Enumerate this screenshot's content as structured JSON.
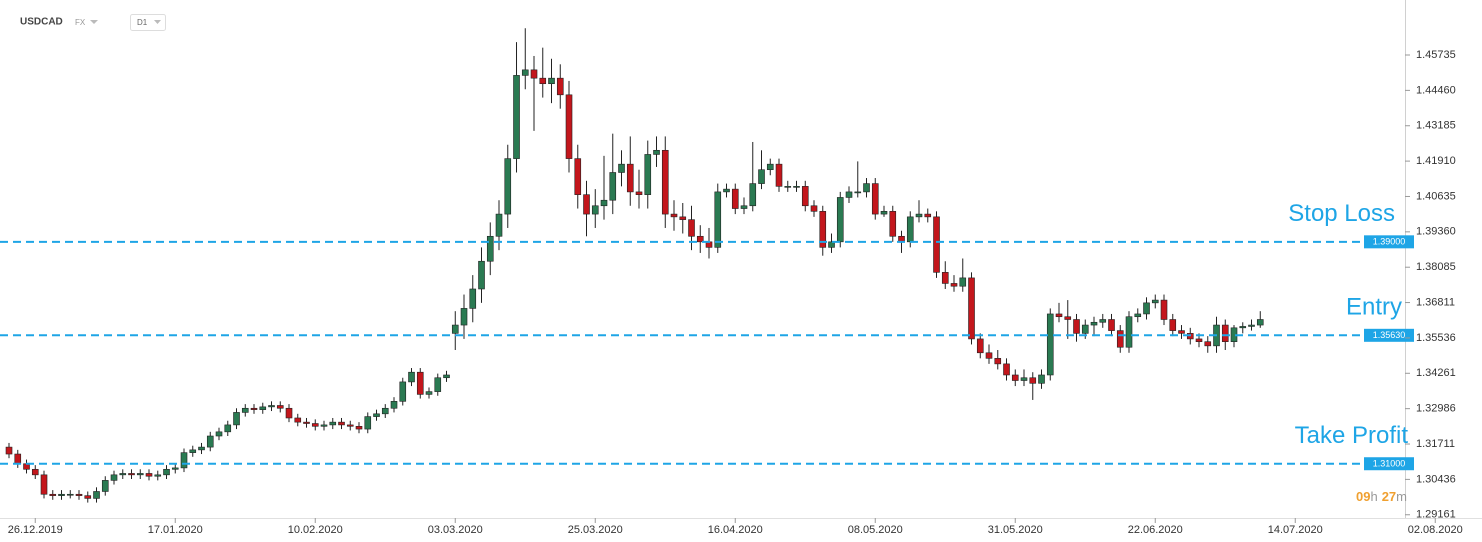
{
  "chart_data": {
    "type": "candlestick",
    "symbol": "USDCAD",
    "market": "FX",
    "timeframe": "D1",
    "colors": {
      "up": "#2a7a52",
      "down": "#c3161c",
      "wick": "#222222"
    },
    "ohlc": [
      [
        1.316,
        1.3175,
        1.312,
        1.3135
      ],
      [
        1.3135,
        1.315,
        1.3085,
        1.31
      ],
      [
        1.31,
        1.3115,
        1.3065,
        1.308
      ],
      [
        1.308,
        1.3095,
        1.3045,
        1.306
      ],
      [
        1.306,
        1.3075,
        1.2975,
        1.299
      ],
      [
        1.299,
        1.3005,
        1.297,
        1.2985
      ],
      [
        1.2985,
        1.3005,
        1.297,
        1.299
      ],
      [
        1.299,
        1.3005,
        1.2975,
        1.299
      ],
      [
        1.299,
        1.3005,
        1.297,
        1.2985
      ],
      [
        1.2985,
        1.3,
        1.296,
        1.2975
      ],
      [
        1.2975,
        1.3015,
        1.296,
        1.3
      ],
      [
        1.3,
        1.3055,
        1.2985,
        1.304
      ],
      [
        1.304,
        1.3075,
        1.3025,
        1.306
      ],
      [
        1.306,
        1.308,
        1.3045,
        1.3065
      ],
      [
        1.3065,
        1.308,
        1.3045,
        1.306
      ],
      [
        1.306,
        1.308,
        1.3045,
        1.3065
      ],
      [
        1.3065,
        1.308,
        1.304,
        1.3055
      ],
      [
        1.3055,
        1.3075,
        1.304,
        1.306
      ],
      [
        1.306,
        1.3095,
        1.3045,
        1.308
      ],
      [
        1.308,
        1.31,
        1.3065,
        1.3085
      ],
      [
        1.3085,
        1.3155,
        1.307,
        1.314
      ],
      [
        1.314,
        1.3165,
        1.3125,
        1.315
      ],
      [
        1.315,
        1.3175,
        1.3135,
        1.316
      ],
      [
        1.316,
        1.3215,
        1.3145,
        1.32
      ],
      [
        1.32,
        1.323,
        1.3185,
        1.3215
      ],
      [
        1.3215,
        1.3255,
        1.32,
        1.324
      ],
      [
        1.324,
        1.33,
        1.3225,
        1.3285
      ],
      [
        1.3285,
        1.3315,
        1.327,
        1.33
      ],
      [
        1.33,
        1.3315,
        1.328,
        1.3295
      ],
      [
        1.3295,
        1.332,
        1.328,
        1.3305
      ],
      [
        1.3305,
        1.3325,
        1.329,
        1.331
      ],
      [
        1.331,
        1.3325,
        1.3285,
        1.33
      ],
      [
        1.33,
        1.3315,
        1.325,
        1.3265
      ],
      [
        1.3265,
        1.328,
        1.3235,
        1.325
      ],
      [
        1.325,
        1.3265,
        1.323,
        1.3245
      ],
      [
        1.3245,
        1.326,
        1.322,
        1.3235
      ],
      [
        1.3235,
        1.3255,
        1.322,
        1.324
      ],
      [
        1.324,
        1.3265,
        1.3225,
        1.325
      ],
      [
        1.325,
        1.3265,
        1.3225,
        1.324
      ],
      [
        1.324,
        1.3255,
        1.322,
        1.3235
      ],
      [
        1.3235,
        1.325,
        1.321,
        1.3225
      ],
      [
        1.3225,
        1.3285,
        1.321,
        1.327
      ],
      [
        1.327,
        1.3295,
        1.3255,
        1.328
      ],
      [
        1.328,
        1.3315,
        1.3265,
        1.33
      ],
      [
        1.33,
        1.334,
        1.3285,
        1.3325
      ],
      [
        1.3325,
        1.341,
        1.331,
        1.3395
      ],
      [
        1.3395,
        1.3445,
        1.338,
        1.343
      ],
      [
        1.343,
        1.3445,
        1.3335,
        1.335
      ],
      [
        1.335,
        1.3375,
        1.3335,
        1.336
      ],
      [
        1.336,
        1.3425,
        1.3345,
        1.341
      ],
      [
        1.341,
        1.3435,
        1.3395,
        1.342
      ],
      [
        1.357,
        1.365,
        1.351,
        1.36
      ],
      [
        1.36,
        1.371,
        1.355,
        1.366
      ],
      [
        1.366,
        1.378,
        1.361,
        1.373
      ],
      [
        1.373,
        1.388,
        1.368,
        1.383
      ],
      [
        1.383,
        1.397,
        1.378,
        1.392
      ],
      [
        1.392,
        1.405,
        1.387,
        1.4
      ],
      [
        1.4,
        1.425,
        1.395,
        1.42
      ],
      [
        1.42,
        1.462,
        1.415,
        1.45
      ],
      [
        1.45,
        1.467,
        1.445,
        1.452
      ],
      [
        1.452,
        1.457,
        1.43,
        1.449
      ],
      [
        1.449,
        1.46,
        1.442,
        1.447
      ],
      [
        1.447,
        1.456,
        1.44,
        1.449
      ],
      [
        1.449,
        1.454,
        1.438,
        1.443
      ],
      [
        1.443,
        1.448,
        1.415,
        1.42
      ],
      [
        1.42,
        1.425,
        1.402,
        1.407
      ],
      [
        1.407,
        1.412,
        1.392,
        1.4
      ],
      [
        1.4,
        1.409,
        1.395,
        1.403
      ],
      [
        1.403,
        1.421,
        1.398,
        1.405
      ],
      [
        1.405,
        1.429,
        1.4,
        1.415
      ],
      [
        1.415,
        1.423,
        1.41,
        1.418
      ],
      [
        1.418,
        1.428,
        1.403,
        1.408
      ],
      [
        1.408,
        1.416,
        1.402,
        1.407
      ],
      [
        1.407,
        1.4265,
        1.402,
        1.4215
      ],
      [
        1.4215,
        1.428,
        1.417,
        1.423
      ],
      [
        1.423,
        1.428,
        1.395,
        1.4
      ],
      [
        1.4,
        1.405,
        1.394,
        1.399
      ],
      [
        1.399,
        1.404,
        1.393,
        1.398
      ],
      [
        1.398,
        1.403,
        1.387,
        1.392
      ],
      [
        1.392,
        1.396,
        1.386,
        1.39
      ],
      [
        1.39,
        1.395,
        1.384,
        1.388
      ],
      [
        1.388,
        1.411,
        1.386,
        1.408
      ],
      [
        1.408,
        1.411,
        1.406,
        1.409
      ],
      [
        1.409,
        1.411,
        1.4,
        1.402
      ],
      [
        1.402,
        1.406,
        1.4,
        1.403
      ],
      [
        1.403,
        1.426,
        1.401,
        1.411
      ],
      [
        1.411,
        1.423,
        1.409,
        1.416
      ],
      [
        1.416,
        1.42,
        1.414,
        1.418
      ],
      [
        1.418,
        1.42,
        1.408,
        1.41
      ],
      [
        1.41,
        1.412,
        1.408,
        1.41
      ],
      [
        1.41,
        1.412,
        1.408,
        1.41
      ],
      [
        1.41,
        1.412,
        1.401,
        1.403
      ],
      [
        1.403,
        1.405,
        1.399,
        1.401
      ],
      [
        1.401,
        1.403,
        1.385,
        1.388
      ],
      [
        1.388,
        1.393,
        1.386,
        1.39
      ],
      [
        1.39,
        1.408,
        1.388,
        1.406
      ],
      [
        1.406,
        1.41,
        1.404,
        1.408
      ],
      [
        1.408,
        1.419,
        1.406,
        1.408
      ],
      [
        1.408,
        1.413,
        1.406,
        1.411
      ],
      [
        1.411,
        1.413,
        1.398,
        1.4
      ],
      [
        1.4,
        1.403,
        1.399,
        1.401
      ],
      [
        1.401,
        1.403,
        1.39,
        1.392
      ],
      [
        1.392,
        1.394,
        1.386,
        1.39
      ],
      [
        1.39,
        1.401,
        1.388,
        1.399
      ],
      [
        1.399,
        1.405,
        1.397,
        1.4
      ],
      [
        1.4,
        1.402,
        1.397,
        1.399
      ],
      [
        1.399,
        1.401,
        1.377,
        1.379
      ],
      [
        1.379,
        1.383,
        1.373,
        1.375
      ],
      [
        1.375,
        1.378,
        1.372,
        1.374
      ],
      [
        1.374,
        1.384,
        1.372,
        1.377
      ],
      [
        1.377,
        1.379,
        1.353,
        1.355
      ],
      [
        1.355,
        1.357,
        1.348,
        1.35
      ],
      [
        1.35,
        1.353,
        1.346,
        1.348
      ],
      [
        1.348,
        1.351,
        1.344,
        1.346
      ],
      [
        1.346,
        1.348,
        1.34,
        1.342
      ],
      [
        1.342,
        1.344,
        1.338,
        1.34
      ],
      [
        1.34,
        1.344,
        1.338,
        1.341
      ],
      [
        1.341,
        1.343,
        1.333,
        1.339
      ],
      [
        1.339,
        1.344,
        1.337,
        1.342
      ],
      [
        1.342,
        1.366,
        1.34,
        1.364
      ],
      [
        1.364,
        1.368,
        1.361,
        1.363
      ],
      [
        1.363,
        1.369,
        1.355,
        1.362
      ],
      [
        1.362,
        1.364,
        1.354,
        1.357
      ],
      [
        1.357,
        1.362,
        1.355,
        1.36
      ],
      [
        1.36,
        1.363,
        1.356,
        1.361
      ],
      [
        1.361,
        1.364,
        1.359,
        1.362
      ],
      [
        1.362,
        1.364,
        1.356,
        1.358
      ],
      [
        1.358,
        1.36,
        1.35,
        1.352
      ],
      [
        1.352,
        1.365,
        1.35,
        1.363
      ],
      [
        1.363,
        1.366,
        1.361,
        1.364
      ],
      [
        1.364,
        1.37,
        1.362,
        1.368
      ],
      [
        1.368,
        1.371,
        1.366,
        1.369
      ],
      [
        1.369,
        1.371,
        1.36,
        1.362
      ],
      [
        1.362,
        1.364,
        1.356,
        1.358
      ],
      [
        1.358,
        1.36,
        1.355,
        1.357
      ],
      [
        1.357,
        1.359,
        1.353,
        1.355
      ],
      [
        1.355,
        1.357,
        1.352,
        1.354
      ],
      [
        1.354,
        1.356,
        1.35,
        1.3525
      ],
      [
        1.3525,
        1.363,
        1.35,
        1.36
      ],
      [
        1.36,
        1.362,
        1.351,
        1.354
      ],
      [
        1.354,
        1.36,
        1.352,
        1.359
      ],
      [
        1.359,
        1.361,
        1.357,
        1.3595
      ],
      [
        1.3595,
        1.362,
        1.358,
        1.36
      ],
      [
        1.36,
        1.365,
        1.359,
        1.362
      ]
    ],
    "xlim": [
      -1.03,
      158.97
    ],
    "xticks": [
      {
        "value": 3,
        "label": "26.12.2019"
      },
      {
        "value": 19,
        "label": "17.01.2020"
      },
      {
        "value": 35,
        "label": "10.02.2020"
      },
      {
        "value": 51,
        "label": "03.03.2020"
      },
      {
        "value": 67,
        "label": "25.03.2020"
      },
      {
        "value": 83,
        "label": "16.04.2020"
      },
      {
        "value": 99,
        "label": "08.05.2020"
      },
      {
        "value": 115,
        "label": "31.05.2020"
      },
      {
        "value": 131,
        "label": "22.06.2020"
      },
      {
        "value": 147,
        "label": "14.07.2020"
      },
      {
        "value": 163,
        "label": "02.08.2020"
      }
    ],
    "ylim": [
      1.29044,
      1.47718
    ],
    "yticks": [
      1.45735,
      {
        "value": 1.4446,
        "label": "1.44460"
      },
      1.43185,
      {
        "value": 1.4191,
        "label": "1.41910"
      },
      1.40635,
      {
        "value": 1.3936,
        "label": "1.39360"
      },
      1.38085,
      1.36811,
      1.35536,
      1.34261,
      1.32986,
      1.31711,
      1.30436,
      1.29161
    ],
    "levels": [
      {
        "name": "Stop Loss",
        "value": 1.39,
        "label": "1.39000"
      },
      {
        "name": "Entry",
        "value": 1.3563,
        "label": "1.35630"
      },
      {
        "name": "Take Profit",
        "value": 1.31,
        "label": "1.31000"
      }
    ],
    "level_color": "#1ea5e6",
    "countdown": {
      "hours": "09",
      "hours_unit": "h",
      "minutes": "27",
      "minutes_unit": "m"
    }
  }
}
